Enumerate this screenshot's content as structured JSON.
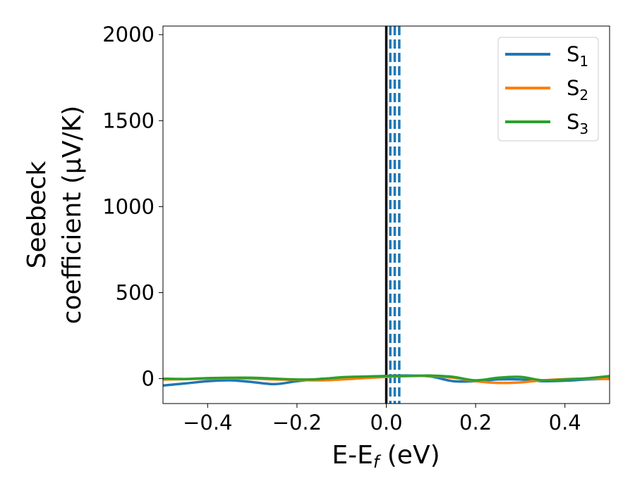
{
  "chart_data": {
    "type": "line",
    "xlabel": "E-E_f (eV)",
    "ylabel_line1": "Seebeck",
    "ylabel_line2": "coefficient  (μV/K)",
    "xlim": [
      -0.5,
      0.5
    ],
    "ylim": [
      -145,
      2050
    ],
    "x_ticks": [
      -0.4,
      -0.2,
      0.0,
      0.2,
      0.4
    ],
    "x_tick_labels": [
      "−0.4",
      "−0.2",
      "0.0",
      "0.2",
      "0.4"
    ],
    "y_ticks": [
      0,
      500,
      1000,
      1500,
      2000
    ],
    "y_tick_labels": [
      "0",
      "500",
      "1000",
      "1500",
      "2000"
    ],
    "grid": false,
    "legend_position": "top-right",
    "vertical_lines": [
      {
        "x": 0.0,
        "style": "solid",
        "color": "#000000"
      },
      {
        "x": 0.009,
        "style": "dashed",
        "color": "#1f77b4"
      },
      {
        "x": 0.019,
        "style": "dashed",
        "color": "#1f77b4"
      },
      {
        "x": 0.029,
        "style": "dashed",
        "color": "#1f77b4"
      }
    ],
    "series": [
      {
        "name": "S",
        "subscript": "1",
        "color": "#1f77b4",
        "x": [
          -0.5,
          -0.45,
          -0.4,
          -0.35,
          -0.3,
          -0.25,
          -0.2,
          -0.15,
          -0.1,
          -0.05,
          0.0,
          0.05,
          0.1,
          0.15,
          0.2,
          0.25,
          0.3,
          0.35,
          0.4,
          0.45,
          0.5
        ],
        "y": [
          -40,
          -28,
          -15,
          -10,
          -20,
          -32,
          -15,
          -2,
          5,
          10,
          15,
          18,
          12,
          -15,
          -15,
          -5,
          -5,
          -15,
          -12,
          -5,
          0
        ]
      },
      {
        "name": "S",
        "subscript": "2",
        "color": "#ff7f0e",
        "x": [
          -0.5,
          -0.45,
          -0.4,
          -0.35,
          -0.3,
          -0.25,
          -0.2,
          -0.15,
          -0.1,
          -0.05,
          0.0,
          0.05,
          0.1,
          0.15,
          0.2,
          0.25,
          0.3,
          0.35,
          0.4,
          0.45,
          0.5
        ],
        "y": [
          -5,
          -3,
          0,
          2,
          0,
          -5,
          -8,
          -10,
          -5,
          3,
          10,
          15,
          15,
          5,
          -15,
          -25,
          -22,
          -10,
          -3,
          0,
          -2
        ]
      },
      {
        "name": "S",
        "subscript": "3",
        "color": "#2ca02c",
        "x": [
          -0.5,
          -0.45,
          -0.4,
          -0.35,
          -0.3,
          -0.25,
          -0.2,
          -0.15,
          -0.1,
          -0.05,
          0.0,
          0.05,
          0.1,
          0.15,
          0.2,
          0.25,
          0.3,
          0.35,
          0.4,
          0.45,
          0.5
        ],
        "y": [
          0,
          -2,
          3,
          5,
          5,
          0,
          -5,
          -3,
          8,
          12,
          15,
          15,
          18,
          10,
          -10,
          5,
          10,
          -10,
          -5,
          2,
          15
        ]
      }
    ]
  }
}
